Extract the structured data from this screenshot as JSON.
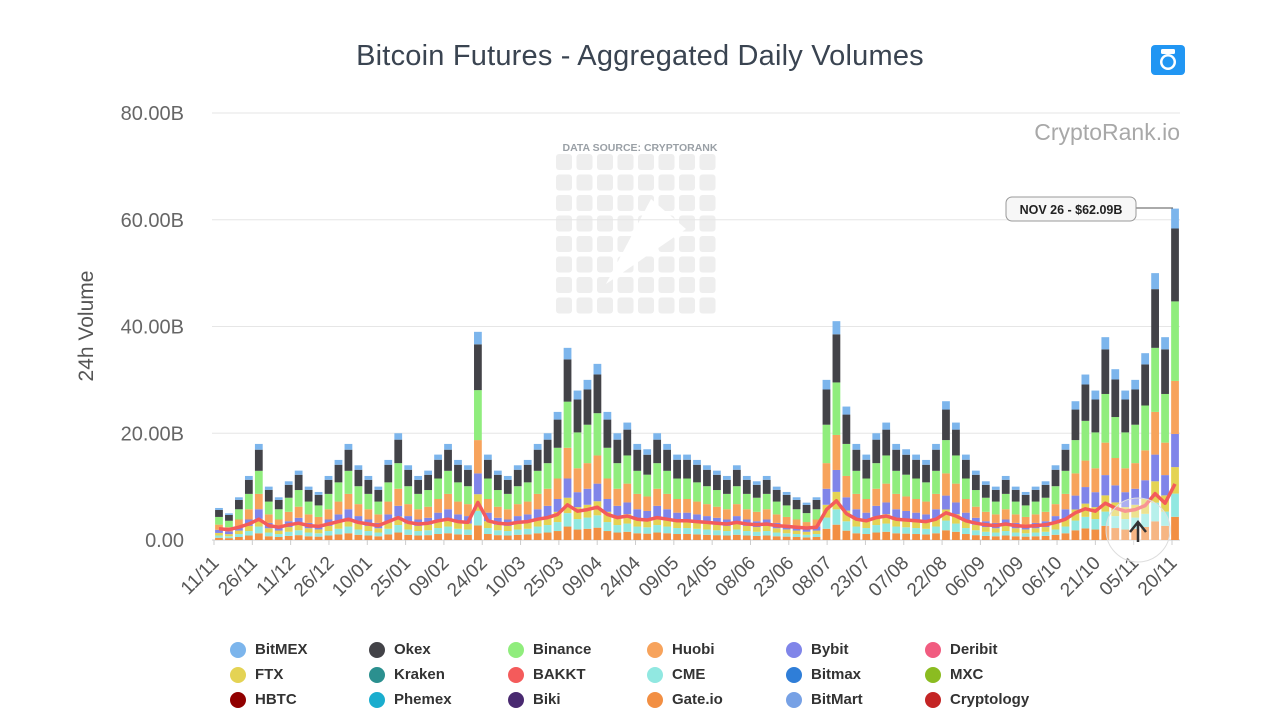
{
  "chart_data": {
    "type": "bar",
    "stacked": true,
    "title": "Bitcoin Futures - Aggregated Daily Volumes",
    "ylabel": "24h Volume",
    "xlabel": "",
    "ylim": [
      0,
      80
    ],
    "y_unit": "B",
    "y_ticks": [
      "0.00",
      "20.00B",
      "40.00B",
      "60.00B",
      "80.00B"
    ],
    "x_ticks": [
      "11/11",
      "26/11",
      "11/12",
      "26/12",
      "10/01",
      "25/01",
      "09/02",
      "24/02",
      "10/03",
      "25/03",
      "09/04",
      "24/04",
      "09/05",
      "24/05",
      "08/06",
      "23/06",
      "08/07",
      "23/07",
      "07/08",
      "22/08",
      "06/09",
      "21/09",
      "06/10",
      "21/10",
      "05/11",
      "20/11"
    ],
    "grid": true,
    "legend_position": "bottom",
    "watermark": "CryptoRank.io",
    "data_source_note": "DATA SOURCE: CRYPTORANK",
    "tooltip": {
      "label": "NOV 26 - $62.09B",
      "date": "NOV 26",
      "value": 62.09
    },
    "total_volume_approx": [
      6,
      5,
      8,
      12,
      18,
      10,
      8,
      11,
      13,
      10,
      9,
      12,
      15,
      18,
      14,
      12,
      10,
      15,
      20,
      14,
      12,
      13,
      16,
      18,
      15,
      14,
      39,
      16,
      13,
      12,
      14,
      15,
      18,
      20,
      24,
      36,
      28,
      30,
      33,
      24,
      20,
      22,
      18,
      17,
      20,
      18,
      16,
      16,
      15,
      14,
      13,
      12,
      14,
      12,
      11,
      12,
      10,
      9,
      8,
      7,
      8,
      30,
      41,
      25,
      18,
      16,
      20,
      22,
      18,
      17,
      16,
      15,
      18,
      26,
      22,
      16,
      13,
      11,
      10,
      12,
      10,
      9,
      10,
      11,
      14,
      18,
      26,
      31,
      28,
      38,
      32,
      28,
      30,
      35,
      50,
      38,
      62.09
    ],
    "series": [
      {
        "name": "BitMEX",
        "color": "#7cb5ec"
      },
      {
        "name": "Okex",
        "color": "#434348"
      },
      {
        "name": "Binance",
        "color": "#90ed7d"
      },
      {
        "name": "Huobi",
        "color": "#f7a35c"
      },
      {
        "name": "Bybit",
        "color": "#8085e9"
      },
      {
        "name": "Deribit",
        "color": "#f15c80"
      },
      {
        "name": "FTX",
        "color": "#e4d354"
      },
      {
        "name": "Kraken",
        "color": "#2b908f"
      },
      {
        "name": "BAKKT",
        "color": "#f45b5b"
      },
      {
        "name": "CME",
        "color": "#91e8e1"
      },
      {
        "name": "Bitmax",
        "color": "#2f7ed8"
      },
      {
        "name": "MXC",
        "color": "#8bbc21"
      },
      {
        "name": "HBTC",
        "color": "#910000"
      },
      {
        "name": "Phemex",
        "color": "#1aadce"
      },
      {
        "name": "Biki",
        "color": "#492970"
      },
      {
        "name": "Gate.io",
        "color": "#f28f43"
      },
      {
        "name": "BitMart",
        "color": "#77a1e5"
      },
      {
        "name": "Cryptology",
        "color": "#c42525"
      }
    ]
  },
  "icons": {
    "camera": "camera-icon"
  },
  "colors": {
    "title": "#3a4451",
    "grid": "#e6e6e6",
    "axis_text": "#666666",
    "avg_line": "#f45b5b",
    "camera": "#2196f3"
  }
}
